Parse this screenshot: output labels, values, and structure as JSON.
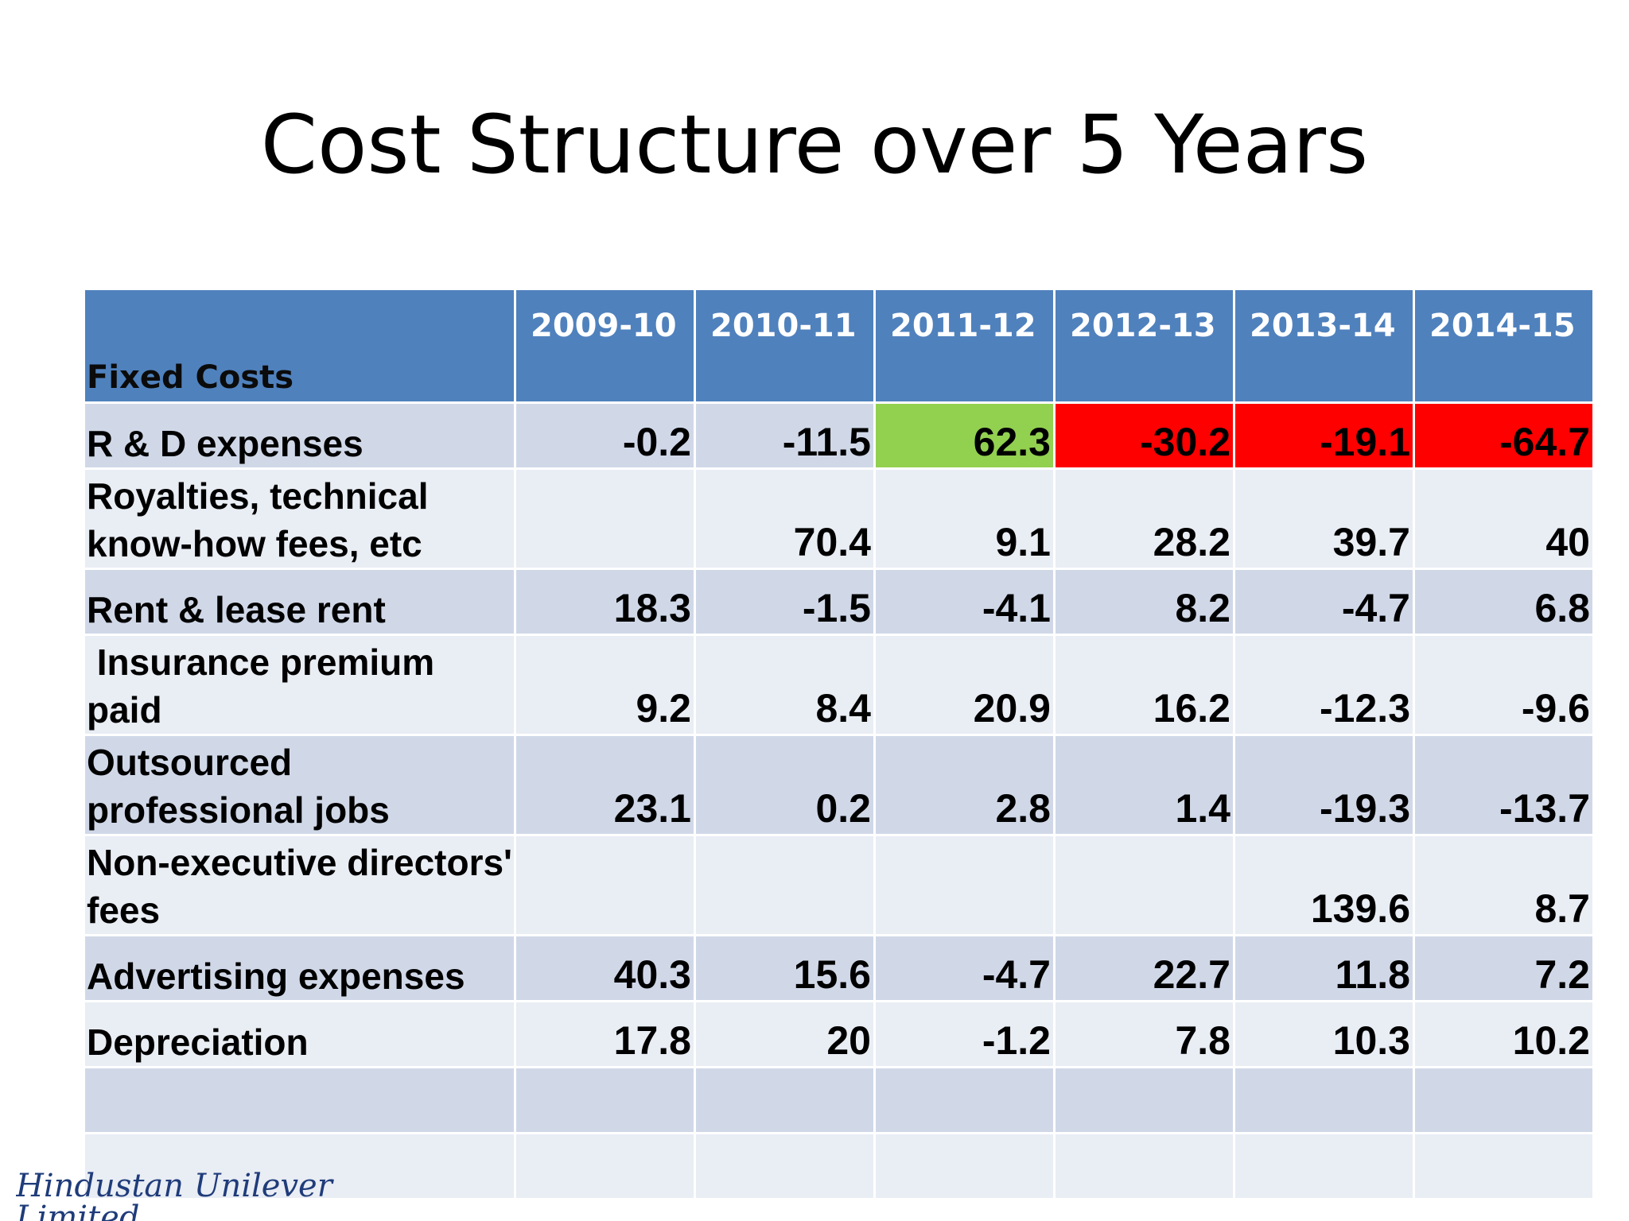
{
  "slide": {
    "title": "Cost Structure over 5 Years",
    "footer_logo_text": "Hindustan Unilever Limited"
  },
  "colors": {
    "header_blue": "#4f81bd",
    "band_dark": "#d0d8e8",
    "band_light": "#e9edf4",
    "highlight_green": "#92d050",
    "highlight_red": "#ff0000"
  },
  "table": {
    "corner_label": "Fixed Costs",
    "years": [
      "2009-10",
      "2010-11",
      "2011-12",
      "2012-13",
      "2013-14",
      "2014-15"
    ],
    "rows": [
      {
        "label": "R & D expenses",
        "values": [
          "-0.2",
          "-11.5",
          "62.3",
          "-30.2",
          "-19.1",
          "-64.7"
        ]
      },
      {
        "label": "Royalties, technical know-how fees, etc",
        "values": [
          "",
          "70.4",
          "9.1",
          "28.2",
          "39.7",
          "40"
        ]
      },
      {
        "label": "Rent & lease rent",
        "values": [
          "18.3",
          "-1.5",
          "-4.1",
          "8.2",
          "-4.7",
          "6.8"
        ]
      },
      {
        "label": " Insurance premium paid",
        "values": [
          "9.2",
          "8.4",
          "20.9",
          "16.2",
          "-12.3",
          "-9.6"
        ]
      },
      {
        "label": "Outsourced professional jobs",
        "values": [
          "23.1",
          "0.2",
          "2.8",
          "1.4",
          "-19.3",
          "-13.7"
        ]
      },
      {
        "label": "Non-executive directors' fees",
        "values": [
          "",
          "",
          "",
          "",
          "139.6",
          "8.7"
        ]
      },
      {
        "label": "Advertising expenses",
        "values": [
          "40.3",
          "15.6",
          "-4.7",
          "22.7",
          "11.8",
          "7.2"
        ]
      },
      {
        "label": "Depreciation",
        "values": [
          "17.8",
          "20",
          "-1.2",
          "7.8",
          "10.3",
          "10.2"
        ]
      },
      {
        "label": "",
        "values": [
          "",
          "",
          "",
          "",
          "",
          ""
        ]
      },
      {
        "label": "",
        "values": [
          "",
          "",
          "",
          "",
          "",
          ""
        ]
      }
    ]
  }
}
